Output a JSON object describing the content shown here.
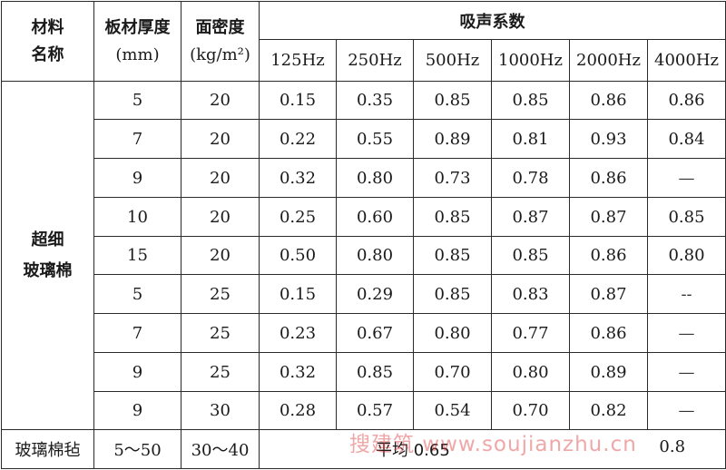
{
  "header": {
    "material_line1": "材料",
    "material_line2": "名称",
    "thickness_line1": "板材厚度",
    "thickness_line2": "(mm)",
    "density_line1": "面密度",
    "density_line2": "(kg/m²)",
    "absorption": "吸声系数",
    "frequencies": [
      "125Hz",
      "250Hz",
      "500Hz",
      "1000Hz",
      "2000Hz",
      "4000Hz"
    ]
  },
  "group1": {
    "name_line1": "超细",
    "name_line2": "玻璃棉"
  },
  "rows": [
    {
      "thickness": "5",
      "density": "20",
      "values": [
        "0.15",
        "0.35",
        "0.85",
        "0.85",
        "0.86",
        "0.86"
      ]
    },
    {
      "thickness": "7",
      "density": "20",
      "values": [
        "0.22",
        "0.55",
        "0.89",
        "0.81",
        "0.93",
        "0.84"
      ]
    },
    {
      "thickness": "9",
      "density": "20",
      "values": [
        "0.32",
        "0.80",
        "0.73",
        "0.78",
        "0.86",
        "—"
      ]
    },
    {
      "thickness": "10",
      "density": "20",
      "values": [
        "0.25",
        "0.60",
        "0.85",
        "0.87",
        "0.87",
        "0.85"
      ]
    },
    {
      "thickness": "15",
      "density": "20",
      "values": [
        "0.50",
        "0.80",
        "0.85",
        "0.85",
        "0.86",
        "0.80"
      ]
    },
    {
      "thickness": "5",
      "density": "25",
      "values": [
        "0.15",
        "0.29",
        "0.85",
        "0.83",
        "0.87",
        "--"
      ]
    },
    {
      "thickness": "7",
      "density": "25",
      "values": [
        "0.23",
        "0.67",
        "0.80",
        "0.77",
        "0.86",
        "—"
      ]
    },
    {
      "thickness": "9",
      "density": "25",
      "values": [
        "0.32",
        "0.85",
        "0.70",
        "0.80",
        "0.89",
        "—"
      ]
    },
    {
      "thickness": "9",
      "density": "30",
      "values": [
        "0.28",
        "0.57",
        "0.54",
        "0.70",
        "0.82",
        "—"
      ]
    }
  ],
  "felt": {
    "name": "玻璃棉毡",
    "thickness": "5～50",
    "density": "30～40",
    "average_text": "平均 0.65",
    "right_value": "0.8"
  },
  "watermark": "搜建筑 www.soujianzhu.cn"
}
